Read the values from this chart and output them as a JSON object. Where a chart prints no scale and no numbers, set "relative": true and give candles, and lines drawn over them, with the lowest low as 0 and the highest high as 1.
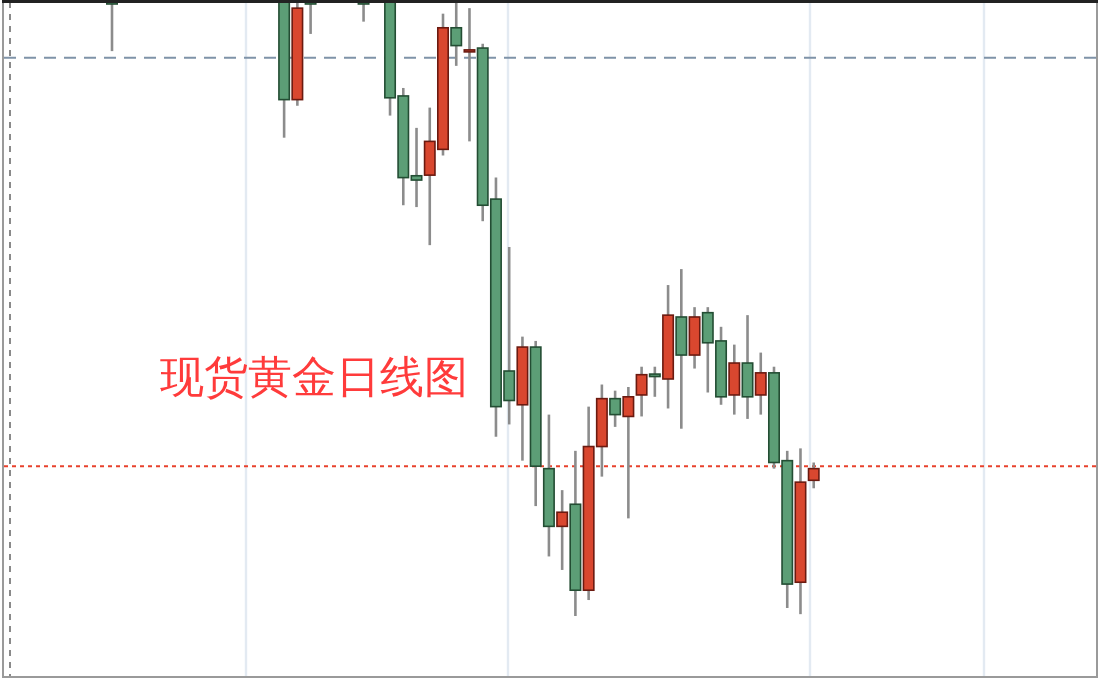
{
  "chart_data": {
    "type": "candlestick",
    "relative": true,
    "categories": [
      null,
      null,
      null,
      null,
      null,
      null,
      null,
      null,
      null,
      null,
      null,
      null,
      null,
      null,
      null,
      null,
      null,
      null,
      null,
      null,
      null,
      null,
      null,
      null,
      null,
      null,
      null,
      null,
      null,
      null,
      null,
      null,
      null,
      null,
      null,
      null,
      null,
      null,
      null,
      null,
      null,
      null,
      null,
      null,
      null,
      null,
      null,
      null,
      null,
      null,
      null,
      null,
      null,
      null
    ],
    "ohlc": [
      [
        1,
        1,
        0.92,
        1
      ],
      null,
      null,
      null,
      null,
      null,
      null,
      null,
      null,
      null,
      null,
      null,
      null,
      [
        1,
        1,
        0.779,
        0.841
      ],
      [
        0.841,
        1,
        0.831,
        0.99
      ],
      [
        1,
        1,
        0.948,
        1
      ],
      null,
      null,
      null,
      [
        1,
        1,
        0.968,
        1
      ],
      null,
      [
        1,
        1,
        0.815,
        0.844
      ],
      [
        0.847,
        0.86,
        0.669,
        0.714
      ],
      [
        0.717,
        0.795,
        0.666,
        0.71
      ],
      [
        0.718,
        0.828,
        0.604,
        0.773
      ],
      [
        0.76,
        0.981,
        0.75,
        0.958
      ],
      [
        0.958,
        1,
        0.896,
        0.929
      ],
      [
        0.92,
        0.99,
        0.773,
        0.922
      ],
      [
        0.925,
        0.932,
        0.643,
        0.669
      ],
      [
        0.679,
        0.714,
        0.292,
        0.341
      ],
      [
        0.399,
        0.601,
        0.312,
        0.351
      ],
      [
        0.344,
        0.455,
        0.253,
        0.438
      ],
      [
        0.438,
        0.448,
        0.179,
        0.244
      ],
      [
        0.24,
        0.328,
        0.097,
        0.146
      ],
      [
        0.146,
        0.205,
        0.075,
        0.169
      ],
      [
        0.182,
        0.269,
        0,
        0.042
      ],
      [
        0.042,
        0.341,
        0.026,
        0.276
      ],
      [
        0.276,
        0.377,
        0.227,
        0.354
      ],
      [
        0.354,
        0.367,
        0.308,
        0.328
      ],
      [
        0.325,
        0.373,
        0.159,
        0.357
      ],
      [
        0.36,
        0.406,
        0.325,
        0.393
      ],
      [
        0.394,
        0.406,
        0.357,
        0.39
      ],
      [
        0.386,
        0.539,
        0.338,
        0.49
      ],
      [
        0.487,
        0.565,
        0.305,
        0.425
      ],
      [
        0.425,
        0.503,
        0.403,
        0.487
      ],
      [
        0.494,
        0.503,
        0.364,
        0.445
      ],
      [
        0.448,
        0.471,
        0.344,
        0.357
      ],
      [
        0.36,
        0.442,
        0.328,
        0.412
      ],
      [
        0.412,
        0.49,
        0.321,
        0.357
      ],
      [
        0.36,
        0.429,
        0.328,
        0.396
      ],
      [
        0.396,
        0.406,
        0.24,
        0.25
      ],
      [
        0.253,
        0.269,
        0.013,
        0.052
      ],
      [
        0.055,
        0.273,
        0.003,
        0.218
      ],
      [
        0.221,
        0.25,
        0.208,
        0.24
      ]
    ],
    "ref_lines": [
      {
        "axis": "y",
        "value": 0.909,
        "line_style": "dashed",
        "color": "#7f93a8"
      },
      {
        "axis": "y",
        "value": 0.244,
        "line_style": "dotted",
        "color": "#e8412c"
      }
    ],
    "annotations": [
      "现货黄金日线图"
    ]
  }
}
